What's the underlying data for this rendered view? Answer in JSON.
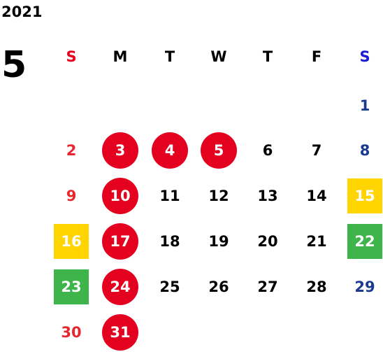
{
  "calendar": {
    "year": "2021",
    "month": "5",
    "weekdays": [
      "S",
      "M",
      "T",
      "W",
      "T",
      "F",
      "S"
    ],
    "weeks": [
      [
        null,
        null,
        null,
        null,
        null,
        null,
        {
          "day": "1",
          "mark": "none"
        }
      ],
      [
        {
          "day": "2",
          "mark": "none"
        },
        {
          "day": "3",
          "mark": "holiday"
        },
        {
          "day": "4",
          "mark": "holiday"
        },
        {
          "day": "5",
          "mark": "holiday"
        },
        {
          "day": "6",
          "mark": "none"
        },
        {
          "day": "7",
          "mark": "none"
        },
        {
          "day": "8",
          "mark": "none"
        }
      ],
      [
        {
          "day": "9",
          "mark": "none"
        },
        {
          "day": "10",
          "mark": "holiday"
        },
        {
          "day": "11",
          "mark": "none"
        },
        {
          "day": "12",
          "mark": "none"
        },
        {
          "day": "13",
          "mark": "none"
        },
        {
          "day": "14",
          "mark": "none"
        },
        {
          "day": "15",
          "mark": "yellow"
        }
      ],
      [
        {
          "day": "16",
          "mark": "yellow"
        },
        {
          "day": "17",
          "mark": "holiday"
        },
        {
          "day": "18",
          "mark": "none"
        },
        {
          "day": "19",
          "mark": "none"
        },
        {
          "day": "20",
          "mark": "none"
        },
        {
          "day": "21",
          "mark": "none"
        },
        {
          "day": "22",
          "mark": "green"
        }
      ],
      [
        {
          "day": "23",
          "mark": "green"
        },
        {
          "day": "24",
          "mark": "holiday"
        },
        {
          "day": "25",
          "mark": "none"
        },
        {
          "day": "26",
          "mark": "none"
        },
        {
          "day": "27",
          "mark": "none"
        },
        {
          "day": "28",
          "mark": "none"
        },
        {
          "day": "29",
          "mark": "none"
        }
      ],
      [
        {
          "day": "30",
          "mark": "none"
        },
        {
          "day": "31",
          "mark": "holiday"
        },
        null,
        null,
        null,
        null,
        null
      ]
    ]
  },
  "colors": {
    "holiday": "#e4001f",
    "sunday_text": "#e8262d",
    "saturday_text": "#1a3a8f",
    "yellow_mark": "#ffd400",
    "green_mark": "#3db54a"
  }
}
